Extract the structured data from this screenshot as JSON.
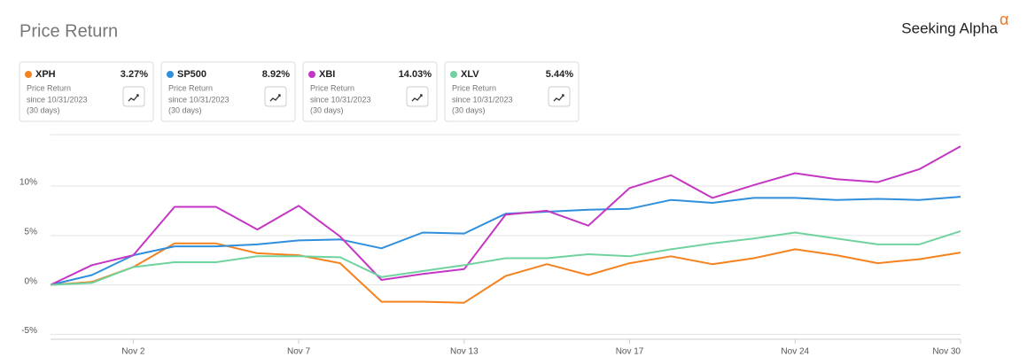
{
  "chart_data": {
    "type": "line",
    "title": "Price Return",
    "brand": "Seeking Alpha",
    "brand_mark": "α",
    "card_subtitle": "Price Return",
    "card_since": "since 10/31/2023",
    "card_period": "(30 days)",
    "categories": [
      null,
      null,
      "Nov 2",
      null,
      null,
      null,
      "Nov 7",
      null,
      null,
      null,
      "Nov 13",
      null,
      null,
      null,
      "Nov 17",
      null,
      null,
      null,
      "Nov 24",
      null,
      null,
      null,
      "Nov 30"
    ],
    "ylim": [
      -5.5,
      15.2
    ],
    "yticks": [
      {
        "value": -5,
        "label": "-5%"
      },
      {
        "value": 0,
        "label": "0%"
      },
      {
        "value": 5,
        "label": "5%"
      },
      {
        "value": 10,
        "label": "10%"
      }
    ],
    "grid": true,
    "series": [
      {
        "name": "XPH",
        "color": "#f5821f",
        "values": [
          0,
          0.3,
          1.8,
          4.2,
          4.2,
          3.2,
          3.0,
          2.2,
          -1.7,
          -1.7,
          -1.8,
          0.9,
          2.1,
          1.0,
          2.2,
          2.9,
          2.1,
          2.7,
          3.6,
          3.0,
          2.2,
          2.6,
          3.27
        ],
        "value_labels": [
          null,
          null,
          null,
          null,
          null,
          null,
          null,
          null,
          null,
          null,
          null,
          null,
          null,
          null,
          null,
          null,
          null,
          null,
          null,
          null,
          null,
          null,
          "3.27%"
        ]
      },
      {
        "name": "SP500",
        "color": "#2f8fdc",
        "values": [
          0,
          1.0,
          3.0,
          3.9,
          3.9,
          4.1,
          4.5,
          4.6,
          3.7,
          5.3,
          5.2,
          7.2,
          7.4,
          7.6,
          7.7,
          8.6,
          8.3,
          8.8,
          8.8,
          8.6,
          8.7,
          8.6,
          8.92
        ],
        "value_labels": [
          null,
          null,
          null,
          null,
          null,
          null,
          null,
          null,
          null,
          null,
          null,
          null,
          null,
          null,
          null,
          null,
          null,
          null,
          null,
          null,
          null,
          null,
          "8.92%"
        ]
      },
      {
        "name": "XBI",
        "color": "#c436c4",
        "values": [
          0,
          2.0,
          3.0,
          7.9,
          7.9,
          5.6,
          8.0,
          4.9,
          0.5,
          1.1,
          1.6,
          7.1,
          7.5,
          6.0,
          9.8,
          11.1,
          8.8,
          10.1,
          11.3,
          10.7,
          10.4,
          11.7,
          14.03
        ],
        "value_labels": [
          null,
          null,
          null,
          null,
          null,
          null,
          null,
          null,
          null,
          null,
          null,
          null,
          null,
          null,
          null,
          null,
          null,
          null,
          null,
          null,
          null,
          null,
          "14.03%"
        ]
      },
      {
        "name": "XLV",
        "color": "#6fd3a0",
        "values": [
          0,
          0.2,
          1.8,
          2.3,
          2.3,
          2.9,
          2.9,
          2.8,
          0.8,
          1.4,
          2.0,
          2.7,
          2.7,
          3.1,
          2.9,
          3.6,
          4.2,
          4.7,
          5.3,
          4.7,
          4.1,
          4.1,
          5.44
        ],
        "value_labels": [
          null,
          null,
          null,
          null,
          null,
          null,
          null,
          null,
          null,
          null,
          null,
          null,
          null,
          null,
          null,
          null,
          null,
          null,
          null,
          null,
          null,
          null,
          "5.44%"
        ]
      }
    ]
  }
}
